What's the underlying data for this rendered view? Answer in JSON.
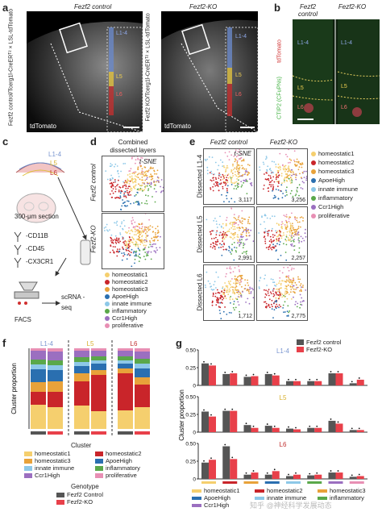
{
  "panels": {
    "a": {
      "label": "a",
      "title_control": "Fezf2 control",
      "title_ko": "Fezf2-KO",
      "ylabel_control": "Fezf2 control/Tcerg1l-CreERᵀ² × LSL-tdTomato",
      "ylabel_ko": "Fezf2 KO/Tcerg1l-CreERᵀ² × LSL-tdTomato",
      "stain_left": "tdTomato",
      "stain_right": "tdTomato",
      "layers": [
        "L1-4",
        "L5",
        "L6"
      ]
    },
    "b": {
      "label": "b",
      "title_control": "Fezf2 control",
      "title_ko": "Fezf2-KO",
      "side_red": "tdTomato",
      "side_green": "CTIP2 (CFuPNs)",
      "layers": [
        "L1-4",
        "L5",
        "L6"
      ]
    },
    "c": {
      "label": "c",
      "layers": [
        "L1-4",
        "L5",
        "L6"
      ],
      "section": "300-μm section",
      "markers": [
        "-CD11B",
        "-CD45",
        "-CX3CR1"
      ],
      "facs": "FACS",
      "scrna": "scRNA -seq"
    },
    "d": {
      "label": "d",
      "title": "Combined dissected layers",
      "tsne": "t-SNE",
      "row1": "Fezf2 control",
      "row2": "Fezf2-KO"
    },
    "e": {
      "label": "e",
      "col1": "Fezf2 control",
      "col2": "Fezf2-KO",
      "tsne": "t-SNE",
      "rows": [
        "Dissected L1-4",
        "Dissected L5",
        "Dissected L6"
      ],
      "counts": [
        [
          "3,117",
          "3,256"
        ],
        [
          "2,991",
          "2,257"
        ],
        [
          "1,712",
          "2,775"
        ]
      ]
    },
    "f": {
      "label": "f",
      "ylabel": "Cluster proportion",
      "xlabel": "Cluster",
      "genotype_title": "Genotype",
      "genotypes": [
        "Fezf2 Control",
        "Fezf2-KO"
      ],
      "layers": [
        "L1-4",
        "L5",
        "L6"
      ]
    },
    "g": {
      "label": "g",
      "ylabel": "Cluster proportion",
      "legend": [
        "Fezf2 control",
        "Fezf2-KO"
      ],
      "layers": [
        "L1-4",
        "L5",
        "L6"
      ],
      "ticks": [
        "0",
        "0.25",
        "0.50"
      ]
    }
  },
  "clusters": [
    {
      "name": "homeostatic1",
      "color": "#f5cf6e"
    },
    {
      "name": "homeostatic2",
      "color": "#c9252a"
    },
    {
      "name": "homeostatic3",
      "color": "#e8a23a"
    },
    {
      "name": "ApoeHigh",
      "color": "#2a6fb0"
    },
    {
      "name": "innate immune",
      "color": "#8dc8e8"
    },
    {
      "name": "inflammatory",
      "color": "#5aa84a"
    },
    {
      "name": "Ccr1High",
      "color": "#9b6fc0"
    },
    {
      "name": "proliferative",
      "color": "#e88fb4"
    }
  ],
  "legend_footer": [
    "homeostatic1",
    "homeostatic2",
    "homeostatic3",
    "ApoeHigh",
    "innate immune",
    "inflammatory",
    "Ccr1High"
  ],
  "watermark": "知乎 @神经科学发展动态",
  "chart_data": [
    {
      "type": "bar",
      "stacked": true,
      "ylabel": "Cluster proportion",
      "xlabel": "Cluster",
      "groups": [
        "L1-4",
        "L5",
        "L6"
      ],
      "series_order": [
        "homeostatic1",
        "homeostatic2",
        "homeostatic3",
        "ApoeHigh",
        "innate immune",
        "inflammatory",
        "Ccr1High",
        "proliferative"
      ],
      "bars": [
        {
          "group": "L1-4",
          "genotype": "Fezf2 Control",
          "values": [
            0.3,
            0.16,
            0.12,
            0.16,
            0.06,
            0.06,
            0.11,
            0.03
          ]
        },
        {
          "group": "L1-4",
          "genotype": "Fezf2-KO",
          "values": [
            0.27,
            0.19,
            0.13,
            0.14,
            0.06,
            0.06,
            0.11,
            0.04
          ]
        },
        {
          "group": "L5",
          "genotype": "Fezf2 Control",
          "values": [
            0.29,
            0.3,
            0.1,
            0.09,
            0.05,
            0.06,
            0.08,
            0.03
          ]
        },
        {
          "group": "L5",
          "genotype": "Fezf2-KO",
          "values": [
            0.22,
            0.45,
            0.06,
            0.08,
            0.04,
            0.05,
            0.07,
            0.03
          ]
        },
        {
          "group": "L6",
          "genotype": "Fezf2 Control",
          "values": [
            0.23,
            0.46,
            0.06,
            0.06,
            0.04,
            0.05,
            0.07,
            0.03
          ]
        },
        {
          "group": "L6",
          "genotype": "Fezf2-KO",
          "values": [
            0.27,
            0.28,
            0.09,
            0.11,
            0.06,
            0.06,
            0.09,
            0.04
          ]
        }
      ]
    },
    {
      "type": "bar",
      "ylabel": "Cluster proportion",
      "ylim": [
        0,
        0.5
      ],
      "categories": [
        "homeostatic1",
        "homeostatic2",
        "homeostatic3",
        "ApoeHigh",
        "innate immune",
        "inflammatory",
        "Ccr1High",
        "proliferative"
      ],
      "panels": [
        {
          "layer": "L1-4",
          "series": [
            {
              "name": "Fezf2 control",
              "values": [
                0.31,
                0.16,
                0.12,
                0.16,
                0.06,
                0.06,
                0.17,
                0.03
              ]
            },
            {
              "name": "Fezf2-KO",
              "values": [
                0.28,
                0.17,
                0.13,
                0.14,
                0.06,
                0.06,
                0.17,
                0.08
              ]
            }
          ]
        },
        {
          "layer": "L5",
          "series": [
            {
              "name": "Fezf2 control",
              "values": [
                0.29,
                0.3,
                0.1,
                0.09,
                0.05,
                0.06,
                0.16,
                0.03
              ]
            },
            {
              "name": "Fezf2-KO",
              "values": [
                0.22,
                0.3,
                0.06,
                0.06,
                0.04,
                0.06,
                0.12,
                0.03
              ]
            }
          ]
        },
        {
          "layer": "L6",
          "series": [
            {
              "name": "Fezf2 control",
              "values": [
                0.23,
                0.46,
                0.06,
                0.06,
                0.04,
                0.05,
                0.09,
                0.03
              ]
            },
            {
              "name": "Fezf2-KO",
              "values": [
                0.27,
                0.28,
                0.09,
                0.11,
                0.06,
                0.06,
                0.09,
                0.04
              ]
            }
          ]
        }
      ]
    }
  ]
}
